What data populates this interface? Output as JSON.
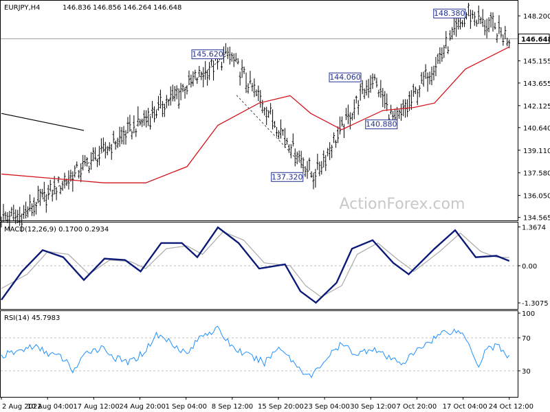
{
  "chart_data": [
    {
      "type": "bar",
      "panel": "price",
      "header": {
        "symbol": "EURJPY,H4",
        "open": "146.836",
        "high": "146.856",
        "low": "146.264",
        "close": "146.648"
      },
      "watermark": "ActionForex.com",
      "y_ticks": [
        "148.200",
        "146.648",
        "145.155",
        "143.655",
        "142.125",
        "140.640",
        "139.110",
        "137.580",
        "136.050",
        "134.565"
      ],
      "current_price_label": "146.648",
      "ylim": [
        134.5,
        148.9
      ],
      "x_ticks": [
        "2 Aug 2022",
        "10 Aug 04:00",
        "17 Aug 12:00",
        "24 Aug 20:00",
        "1 Sep 04:00",
        "8 Sep 12:00",
        "15 Sep 20:00",
        "23 Sep 04:00",
        "30 Sep 12:00",
        "7 Oct 20:00",
        "17 Oct 04:00",
        "24 Oct 12:00"
      ],
      "annotations": [
        "148.380",
        "145.620",
        "144.060",
        "140.880",
        "137.320"
      ],
      "swing_points": [
        {
          "x": 0.035,
          "value": 134.6
        },
        {
          "x": 0.44,
          "value": 145.62
        },
        {
          "x": 0.605,
          "value": 137.32
        },
        {
          "x": 0.72,
          "value": 144.06
        },
        {
          "x": 0.765,
          "value": 140.88
        },
        {
          "x": 0.905,
          "value": 148.38
        },
        {
          "x": 0.985,
          "value": 146.648
        }
      ],
      "trend_line": [
        {
          "x": 0.0,
          "value": 141.6
        },
        {
          "x": 0.16,
          "value": 140.45
        }
      ],
      "moving_average": [
        {
          "x": 0.0,
          "value": 137.5
        },
        {
          "x": 0.1,
          "value": 137.2
        },
        {
          "x": 0.2,
          "value": 136.9
        },
        {
          "x": 0.28,
          "value": 136.9
        },
        {
          "x": 0.36,
          "value": 138.0
        },
        {
          "x": 0.42,
          "value": 140.8
        },
        {
          "x": 0.5,
          "value": 142.3
        },
        {
          "x": 0.56,
          "value": 142.8
        },
        {
          "x": 0.6,
          "value": 141.6
        },
        {
          "x": 0.66,
          "value": 140.5
        },
        {
          "x": 0.74,
          "value": 141.8
        },
        {
          "x": 0.8,
          "value": 142.0
        },
        {
          "x": 0.84,
          "value": 142.3
        },
        {
          "x": 0.9,
          "value": 144.6
        },
        {
          "x": 0.985,
          "value": 146.1
        }
      ],
      "colors": {
        "price": "#000000",
        "moving_average": "#d3141c",
        "label_border": "#1f2f8f"
      }
    },
    {
      "type": "line",
      "panel": "macd",
      "header": "MACD(12,26,9) 0.1700 0.2934",
      "y_ticks": [
        "1.3674",
        "0.00",
        "-1.3075"
      ],
      "ylim": [
        -1.45,
        1.45
      ],
      "macd_values": {
        "main": "0.1700",
        "signal": "0.2934"
      },
      "series": [
        {
          "points": [
            {
              "x": 0.0,
              "value": -1.2
            },
            {
              "x": 0.04,
              "value": -0.2
            },
            {
              "x": 0.08,
              "value": 0.55
            },
            {
              "x": 0.12,
              "value": 0.3
            },
            {
              "x": 0.16,
              "value": -0.5
            },
            {
              "x": 0.2,
              "value": 0.25
            },
            {
              "x": 0.24,
              "value": 0.2
            },
            {
              "x": 0.27,
              "value": -0.2
            },
            {
              "x": 0.31,
              "value": 0.8
            },
            {
              "x": 0.35,
              "value": 0.8
            },
            {
              "x": 0.38,
              "value": 0.3
            },
            {
              "x": 0.42,
              "value": 1.35
            },
            {
              "x": 0.46,
              "value": 0.8
            },
            {
              "x": 0.5,
              "value": -0.1
            },
            {
              "x": 0.55,
              "value": 0.05
            },
            {
              "x": 0.58,
              "value": -0.9
            },
            {
              "x": 0.61,
              "value": -1.3
            },
            {
              "x": 0.65,
              "value": -0.6
            },
            {
              "x": 0.68,
              "value": 0.6
            },
            {
              "x": 0.72,
              "value": 0.9
            },
            {
              "x": 0.76,
              "value": 0.1
            },
            {
              "x": 0.79,
              "value": -0.3
            },
            {
              "x": 0.84,
              "value": 0.6
            },
            {
              "x": 0.88,
              "value": 1.25
            },
            {
              "x": 0.92,
              "value": 0.3
            },
            {
              "x": 0.96,
              "value": 0.35
            },
            {
              "x": 0.985,
              "value": 0.17
            }
          ]
        },
        {
          "points": [
            {
              "x": 0.0,
              "value": -0.8
            },
            {
              "x": 0.05,
              "value": -0.3
            },
            {
              "x": 0.09,
              "value": 0.5
            },
            {
              "x": 0.13,
              "value": 0.4
            },
            {
              "x": 0.17,
              "value": -0.3
            },
            {
              "x": 0.21,
              "value": 0.2
            },
            {
              "x": 0.25,
              "value": 0.15
            },
            {
              "x": 0.28,
              "value": -0.1
            },
            {
              "x": 0.32,
              "value": 0.6
            },
            {
              "x": 0.36,
              "value": 0.7
            },
            {
              "x": 0.39,
              "value": 0.4
            },
            {
              "x": 0.43,
              "value": 1.2
            },
            {
              "x": 0.47,
              "value": 0.9
            },
            {
              "x": 0.51,
              "value": 0.1
            },
            {
              "x": 0.56,
              "value": 0.0
            },
            {
              "x": 0.59,
              "value": -0.7
            },
            {
              "x": 0.62,
              "value": -1.1
            },
            {
              "x": 0.66,
              "value": -0.7
            },
            {
              "x": 0.69,
              "value": 0.4
            },
            {
              "x": 0.73,
              "value": 0.8
            },
            {
              "x": 0.77,
              "value": 0.2
            },
            {
              "x": 0.8,
              "value": -0.2
            },
            {
              "x": 0.85,
              "value": 0.5
            },
            {
              "x": 0.89,
              "value": 1.15
            },
            {
              "x": 0.93,
              "value": 0.5
            },
            {
              "x": 0.96,
              "value": 0.3
            },
            {
              "x": 0.985,
              "value": 0.29
            }
          ]
        }
      ],
      "colors": {
        "main": "#0b1a78",
        "signal": "#a9a9a9"
      }
    },
    {
      "type": "line",
      "panel": "rsi",
      "header": "RSI(14) 45.7983",
      "y_ticks": [
        "100",
        "70",
        "30"
      ],
      "ylim": [
        0,
        100
      ],
      "series": [
        {
          "points": [
            {
              "x": 0.0,
              "value": 48
            },
            {
              "x": 0.03,
              "value": 53
            },
            {
              "x": 0.06,
              "value": 60
            },
            {
              "x": 0.09,
              "value": 52
            },
            {
              "x": 0.12,
              "value": 45
            },
            {
              "x": 0.14,
              "value": 30
            },
            {
              "x": 0.17,
              "value": 55
            },
            {
              "x": 0.2,
              "value": 58
            },
            {
              "x": 0.22,
              "value": 45
            },
            {
              "x": 0.25,
              "value": 40
            },
            {
              "x": 0.28,
              "value": 55
            },
            {
              "x": 0.3,
              "value": 74
            },
            {
              "x": 0.33,
              "value": 65
            },
            {
              "x": 0.36,
              "value": 50
            },
            {
              "x": 0.39,
              "value": 75
            },
            {
              "x": 0.42,
              "value": 80
            },
            {
              "x": 0.45,
              "value": 58
            },
            {
              "x": 0.48,
              "value": 48
            },
            {
              "x": 0.51,
              "value": 40
            },
            {
              "x": 0.54,
              "value": 60
            },
            {
              "x": 0.57,
              "value": 38
            },
            {
              "x": 0.6,
              "value": 22
            },
            {
              "x": 0.63,
              "value": 45
            },
            {
              "x": 0.66,
              "value": 62
            },
            {
              "x": 0.69,
              "value": 50
            },
            {
              "x": 0.72,
              "value": 58
            },
            {
              "x": 0.75,
              "value": 45
            },
            {
              "x": 0.78,
              "value": 40
            },
            {
              "x": 0.82,
              "value": 62
            },
            {
              "x": 0.86,
              "value": 78
            },
            {
              "x": 0.89,
              "value": 78
            },
            {
              "x": 0.91,
              "value": 60
            },
            {
              "x": 0.925,
              "value": 35
            },
            {
              "x": 0.94,
              "value": 58
            },
            {
              "x": 0.965,
              "value": 60
            },
            {
              "x": 0.985,
              "value": 46
            }
          ]
        }
      ],
      "colors": {
        "rsi": "#1e90ff"
      }
    }
  ]
}
